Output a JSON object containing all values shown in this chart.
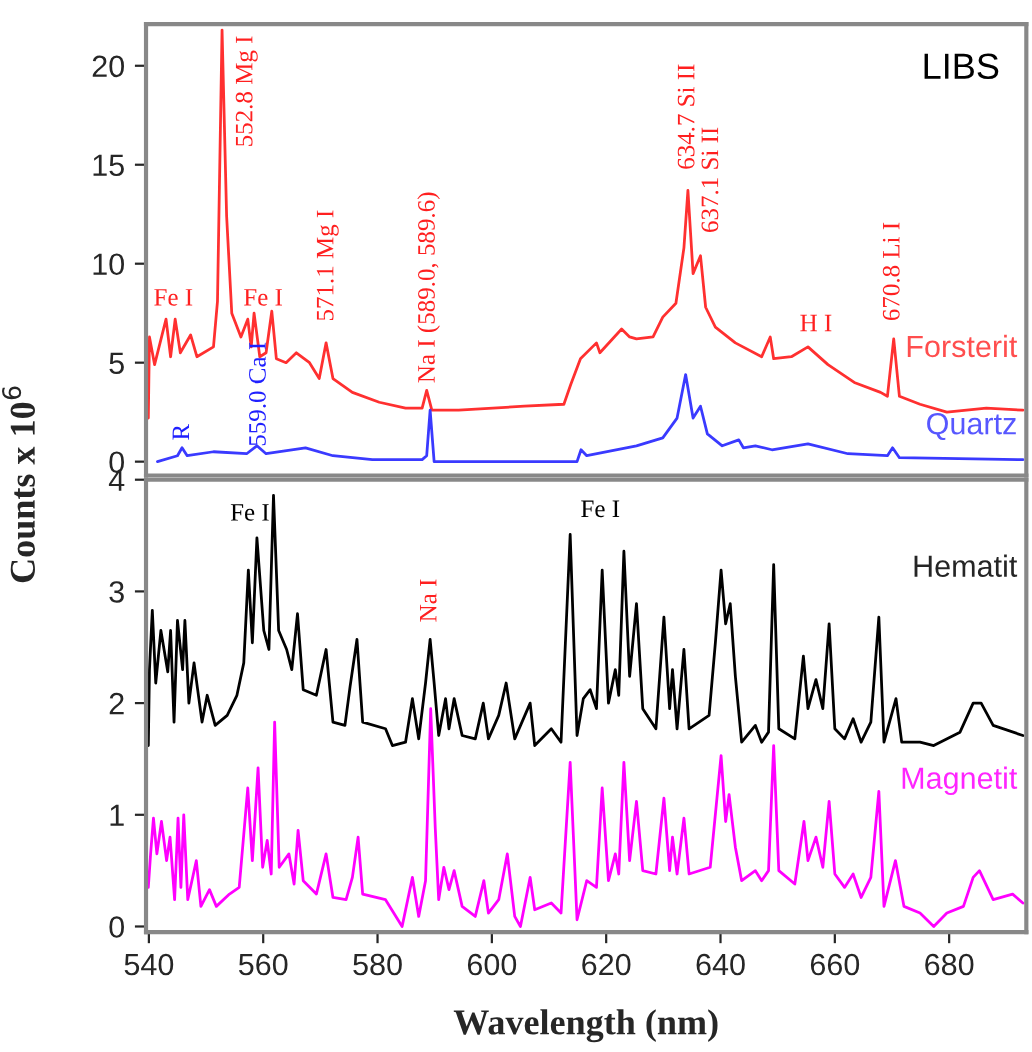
{
  "chart_data": [
    {
      "type": "line",
      "ylabel": "Counts x 10$^{6}$",
      "xlim": [
        539.5,
        693.5
      ],
      "ylim": [
        -0.7,
        22.1
      ],
      "yticks": [
        0,
        5,
        10,
        15,
        20
      ],
      "tick_labels": "y",
      "grid": false,
      "legend": false,
      "annotations": [
        "LIBS",
        "Fe I",
        "552.8 Mg I",
        "Fe I",
        "571.1 Mg I",
        "559.0 Ca I",
        "R",
        "Na I (589.0, 589.6)",
        "634.7 Si II",
        "637.1 Si II",
        "H I",
        "670.8 Li I"
      ],
      "series": [
        {
          "name": "Forsterit",
          "color": "#ff3030",
          "x": [
            539.9,
            540.1,
            541.0,
            543.0,
            543.8,
            544.6,
            545.5,
            547.3,
            548.4,
            551.3,
            552.0,
            552.8,
            553.6,
            554.5,
            556.1,
            557.3,
            557.9,
            558.4,
            559.4,
            560.5,
            561.5,
            562.3,
            564.0,
            565.8,
            568.1,
            569.8,
            571.0,
            572.2,
            575.6,
            580.3,
            584.9,
            587.8,
            588.6,
            589.5,
            594.2,
            605.7,
            612.6,
            613.8,
            615.5,
            618.3,
            618.9,
            622.7,
            624.1,
            625.3,
            628.2,
            629.9,
            632.2,
            633.6,
            634.3,
            635.2,
            636.5,
            637.4,
            639.1,
            642.6,
            647.2,
            648.7,
            649.3,
            652.4,
            655.3,
            658.8,
            663.4,
            668.0,
            669.2,
            670.3,
            671.3,
            674.9,
            679.6,
            686.5,
            692.9
          ],
          "values": [
            2.2,
            6.3,
            4.9,
            7.2,
            5.3,
            7.2,
            5.5,
            6.4,
            5.3,
            5.8,
            8.1,
            21.8,
            12.4,
            7.5,
            6.3,
            7.2,
            5.8,
            7.5,
            5.3,
            5.5,
            7.6,
            5.2,
            5.0,
            5.5,
            5.0,
            4.2,
            6.0,
            4.2,
            3.5,
            3.0,
            2.7,
            2.7,
            3.6,
            2.6,
            2.6,
            2.8,
            2.9,
            3.9,
            5.2,
            6.0,
            5.5,
            6.7,
            6.3,
            6.2,
            6.3,
            7.3,
            8.0,
            10.8,
            13.7,
            9.5,
            10.4,
            7.8,
            6.8,
            6.0,
            5.3,
            6.3,
            5.2,
            5.3,
            5.8,
            4.9,
            4.0,
            3.5,
            3.3,
            6.2,
            3.3,
            2.9,
            2.5,
            2.7,
            2.6
          ]
        },
        {
          "name": "Quartz",
          "color": "#3a3aff",
          "x": [
            541.5,
            545.0,
            545.8,
            546.7,
            551.3,
            557.1,
            558.9,
            560.5,
            567.4,
            572.2,
            579.1,
            587.8,
            588.6,
            589.2,
            589.9,
            605.7,
            614.9,
            615.6,
            616.6,
            625.3,
            629.9,
            632.4,
            633.9,
            635.2,
            636.5,
            637.7,
            640.3,
            643.2,
            644.0,
            646.1,
            649.0,
            655.3,
            662.3,
            669.2,
            670.1,
            671.3,
            692.9
          ],
          "values": [
            0.0,
            0.3,
            0.7,
            0.3,
            0.5,
            0.4,
            0.8,
            0.4,
            0.7,
            0.3,
            0.1,
            0.1,
            0.3,
            2.6,
            0.0,
            0.0,
            0.0,
            0.6,
            0.3,
            0.8,
            1.2,
            2.2,
            4.4,
            2.2,
            2.8,
            1.4,
            0.8,
            1.1,
            0.7,
            0.8,
            0.6,
            0.9,
            0.4,
            0.3,
            0.7,
            0.2,
            0.1
          ]
        }
      ]
    },
    {
      "type": "line",
      "xlabel": "Wavelength (nm)",
      "xlim": [
        539.5,
        693.5
      ],
      "ylim": [
        -0.05,
        4.0
      ],
      "xticks": [
        540,
        560,
        580,
        600,
        620,
        640,
        660,
        680
      ],
      "yticks": [
        0,
        1,
        2,
        3,
        4
      ],
      "grid": false,
      "legend": false,
      "annotations": [
        "Fe I",
        "Fe I",
        "Na I"
      ],
      "series": [
        {
          "name": "Hematit",
          "color": "#000000",
          "x": [
            539.9,
            540.1,
            540.6,
            541.2,
            542.1,
            543.3,
            543.8,
            544.4,
            545.0,
            545.9,
            546.3,
            547.0,
            547.9,
            549.3,
            550.2,
            551.6,
            553.7,
            555.4,
            556.6,
            557.4,
            558.1,
            558.9,
            560.1,
            561.0,
            561.8,
            562.7,
            564.1,
            565.0,
            566.0,
            567.0,
            569.3,
            571.0,
            572.2,
            574.3,
            575.2,
            576.4,
            577.4,
            581.4,
            582.6,
            584.9,
            586.1,
            587.2,
            588.4,
            589.2,
            589.9,
            590.7,
            591.9,
            592.5,
            593.4,
            594.8,
            597.1,
            598.5,
            599.4,
            601.2,
            602.5,
            604.0,
            606.7,
            607.5,
            610.4,
            612.1,
            613.7,
            614.9,
            616.0,
            617.2,
            618.3,
            619.3,
            620.4,
            621.6,
            622.2,
            623.1,
            624.1,
            625.3,
            626.4,
            628.7,
            630.1,
            631.1,
            631.6,
            632.4,
            633.6,
            634.5,
            638.0,
            639.1,
            640.1,
            640.9,
            641.7,
            642.6,
            643.7,
            646.1,
            647.2,
            648.4,
            649.3,
            650.2,
            653.0,
            654.5,
            655.3,
            656.7,
            657.9,
            659.0,
            660.0,
            661.7,
            663.2,
            664.6,
            666.3,
            667.7,
            668.6,
            670.7,
            671.7,
            674.9,
            677.3,
            681.9,
            684.2,
            685.6,
            687.7,
            692.9
          ],
          "values": [
            1.62,
            2.3,
            2.83,
            2.18,
            2.65,
            2.28,
            2.65,
            1.83,
            2.74,
            2.3,
            2.74,
            2.0,
            2.36,
            1.83,
            2.07,
            1.8,
            1.89,
            2.07,
            2.36,
            3.19,
            2.54,
            3.48,
            2.65,
            2.48,
            3.86,
            2.65,
            2.48,
            2.3,
            2.8,
            2.12,
            2.07,
            2.48,
            1.83,
            1.8,
            2.15,
            2.57,
            1.83,
            1.77,
            1.62,
            1.65,
            2.04,
            1.68,
            2.18,
            2.57,
            2.18,
            1.71,
            2.04,
            1.77,
            2.04,
            1.71,
            1.68,
            2.0,
            1.68,
            1.89,
            2.18,
            1.68,
            2.0,
            1.62,
            1.77,
            1.65,
            3.51,
            1.71,
            2.04,
            2.12,
            1.95,
            3.19,
            2.0,
            2.3,
            2.07,
            3.36,
            2.24,
            2.89,
            1.95,
            1.77,
            2.77,
            1.95,
            2.3,
            1.77,
            2.48,
            1.77,
            1.89,
            2.54,
            3.19,
            2.71,
            2.89,
            2.24,
            1.65,
            1.8,
            1.65,
            1.74,
            3.24,
            1.77,
            1.68,
            2.42,
            1.95,
            2.21,
            1.95,
            2.71,
            1.77,
            1.68,
            1.86,
            1.65,
            1.83,
            2.77,
            1.65,
            2.04,
            1.65,
            1.65,
            1.62,
            1.74,
            2.0,
            2.0,
            1.8,
            1.71
          ]
        },
        {
          "name": "Magnetit",
          "color": "#ff00ff",
          "x": [
            539.9,
            540.3,
            540.8,
            541.4,
            542.2,
            543.1,
            543.7,
            544.5,
            545.1,
            545.6,
            546.1,
            546.8,
            548.3,
            549.1,
            550.6,
            551.8,
            554.1,
            555.8,
            557.3,
            558.1,
            559.1,
            559.9,
            560.7,
            561.4,
            562.0,
            562.8,
            564.5,
            565.4,
            566.1,
            567.0,
            569.3,
            571.0,
            572.2,
            574.5,
            575.6,
            576.6,
            577.4,
            581.4,
            584.3,
            586.1,
            587.2,
            588.4,
            589.3,
            590.1,
            590.7,
            591.6,
            592.5,
            593.4,
            594.8,
            597.1,
            598.6,
            599.4,
            601.2,
            602.7,
            604.0,
            605.0,
            606.7,
            607.5,
            610.4,
            612.1,
            613.7,
            614.9,
            616.6,
            618.3,
            619.3,
            620.4,
            621.6,
            622.2,
            623.1,
            624.1,
            625.3,
            626.4,
            628.7,
            630.1,
            631.1,
            631.6,
            632.4,
            633.6,
            634.5,
            638.2,
            640.1,
            640.9,
            641.5,
            642.6,
            643.7,
            646.1,
            647.2,
            648.4,
            649.3,
            650.2,
            653.0,
            654.6,
            655.3,
            656.7,
            657.9,
            659.0,
            660.0,
            661.7,
            663.2,
            664.6,
            666.3,
            667.7,
            668.6,
            670.6,
            672.1,
            674.9,
            677.3,
            679.6,
            682.5,
            684.2,
            685.3,
            687.7,
            691.1,
            692.9
          ],
          "values": [
            0.35,
            0.65,
            0.97,
            0.65,
            0.94,
            0.59,
            0.8,
            0.24,
            0.97,
            0.35,
            1.0,
            0.24,
            0.59,
            0.18,
            0.33,
            0.18,
            0.29,
            0.35,
            1.24,
            0.59,
            1.42,
            0.53,
            0.77,
            0.47,
            1.83,
            0.53,
            0.65,
            0.38,
            0.86,
            0.41,
            0.29,
            0.65,
            0.26,
            0.24,
            0.44,
            0.8,
            0.29,
            0.24,
            0.0,
            0.44,
            0.09,
            0.41,
            1.95,
            0.88,
            0.24,
            0.53,
            0.33,
            0.5,
            0.18,
            0.09,
            0.41,
            0.12,
            0.24,
            0.65,
            0.09,
            0.0,
            0.44,
            0.15,
            0.21,
            0.12,
            1.47,
            0.06,
            0.41,
            0.35,
            1.24,
            0.41,
            0.65,
            0.47,
            1.47,
            0.59,
            1.12,
            0.5,
            0.47,
            1.15,
            0.5,
            0.8,
            0.47,
            0.97,
            0.47,
            0.53,
            1.53,
            0.94,
            1.18,
            0.71,
            0.41,
            0.5,
            0.41,
            0.5,
            1.62,
            0.5,
            0.38,
            0.94,
            0.59,
            0.8,
            0.53,
            1.12,
            0.47,
            0.35,
            0.47,
            0.26,
            0.44,
            1.21,
            0.18,
            0.59,
            0.18,
            0.12,
            0.0,
            0.12,
            0.18,
            0.44,
            0.5,
            0.24,
            0.29,
            0.21
          ]
        }
      ]
    }
  ]
}
